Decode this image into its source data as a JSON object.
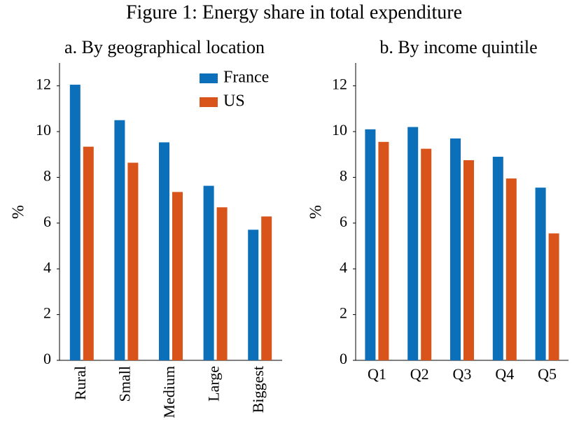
{
  "title": "Figure 1: Energy share in total expenditure",
  "chart_data": [
    {
      "type": "bar",
      "title": "a. By geographical location",
      "y_label": "%",
      "categories": [
        "Rural",
        "Small",
        "Medium",
        "Large",
        "Biggest"
      ],
      "series": [
        {
          "name": "France",
          "color": "#0b6fba",
          "values": [
            12.05,
            10.5,
            9.53,
            7.63,
            5.71
          ]
        },
        {
          "name": "US",
          "color": "#d9541b",
          "values": [
            9.34,
            8.64,
            7.36,
            6.69,
            6.29
          ]
        }
      ],
      "ylim": [
        0,
        13
      ],
      "yticks": [
        0,
        2,
        4,
        6,
        8,
        10,
        12
      ],
      "legend": "upper right",
      "xtick_rotation": 90
    },
    {
      "type": "bar",
      "title": "b. By income quintile",
      "y_label": "%",
      "categories": [
        "Q1",
        "Q2",
        "Q3",
        "Q4",
        "Q5"
      ],
      "series": [
        {
          "name": "France",
          "color": "#0b6fba",
          "values": [
            10.1,
            10.2,
            9.7,
            8.9,
            7.55
          ]
        },
        {
          "name": "US",
          "color": "#d9541b",
          "values": [
            9.55,
            9.25,
            8.75,
            7.95,
            5.55
          ]
        }
      ],
      "ylim": [
        0,
        13
      ],
      "yticks": [
        0,
        2,
        4,
        6,
        8,
        10,
        12
      ],
      "legend": "none",
      "xtick_rotation": 0
    }
  ]
}
